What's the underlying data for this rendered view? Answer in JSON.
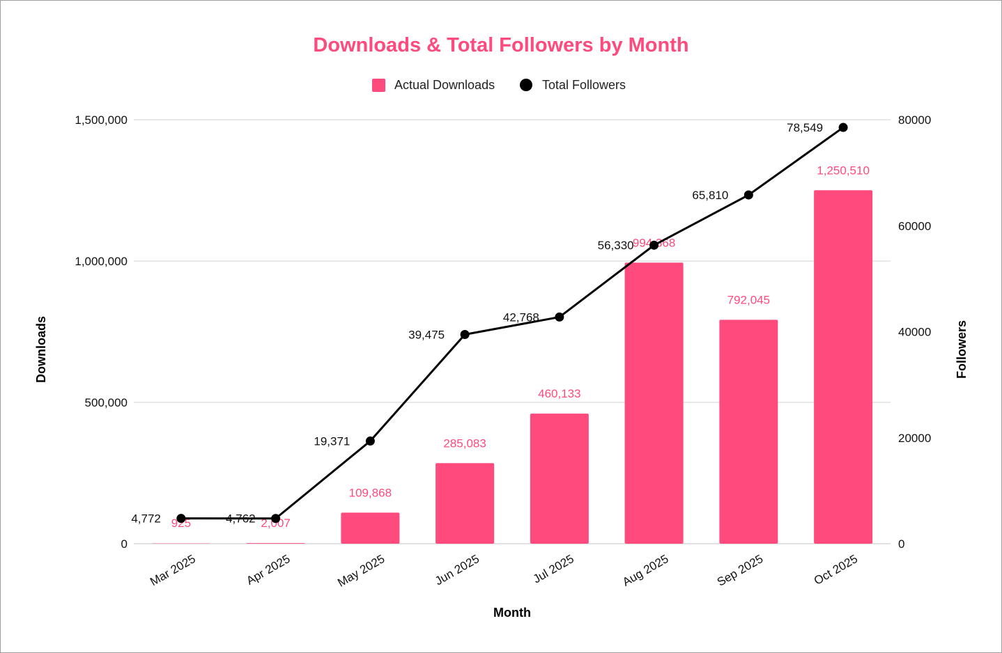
{
  "chart_data": {
    "type": "bar",
    "title": "Downloads & Total Followers by Month",
    "xlabel": "Month",
    "ylabel": "Downloads",
    "y2label": "Followers",
    "categories": [
      "Mar 2025",
      "Apr 2025",
      "May 2025",
      "Jun 2025",
      "Jul 2025",
      "Aug 2025",
      "Sep 2025",
      "Oct 2025"
    ],
    "ylim": [
      0,
      1500000
    ],
    "y2lim": [
      0,
      80000
    ],
    "yticks": [
      "0",
      "500,000",
      "1,000,000",
      "1,500,000"
    ],
    "y2ticks": [
      "0",
      "20000",
      "40000",
      "60000",
      "80000"
    ],
    "grid": true,
    "legend_position": "top-center",
    "series": [
      {
        "name": "Actual Downloads",
        "type": "bar",
        "axis": "left",
        "color": "#ff4a7d",
        "values": [
          925,
          2007,
          109868,
          285083,
          460133,
          994368,
          792045,
          1250510
        ],
        "labels": [
          "925",
          "2,007",
          "109,868",
          "285,083",
          "460,133",
          "994,368",
          "792,045",
          "1,250,510"
        ]
      },
      {
        "name": "Total Followers",
        "type": "line",
        "axis": "right",
        "color": "#000000",
        "values": [
          4772,
          4762,
          19371,
          39475,
          42768,
          56330,
          65810,
          78549
        ],
        "labels": [
          "4,772",
          "4,762",
          "19,371",
          "39,475",
          "42,768",
          "56,330",
          "65,810",
          "78,549"
        ]
      }
    ]
  },
  "colors": {
    "title": "#ff4a7d",
    "bar": "#ff4a7d",
    "bar_label": "#ff4a7d",
    "line": "#000000",
    "grid": "#d9d9d9"
  }
}
